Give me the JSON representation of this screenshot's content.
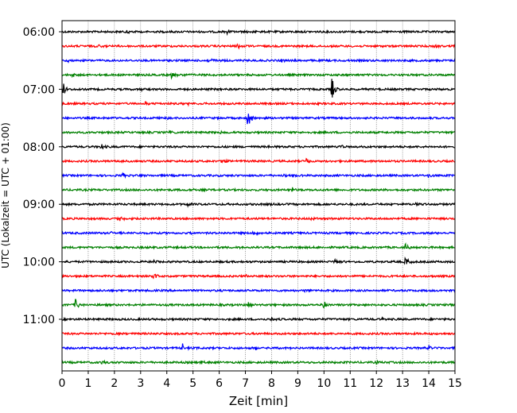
{
  "chart_data": {
    "type": "line",
    "title": "",
    "xlabel": "Zeit  [min]",
    "ylabel": "UTC (Lokalzeit = UTC + 01:00)",
    "xlim": [
      0,
      15
    ],
    "xticks": [
      0,
      1,
      2,
      3,
      4,
      5,
      6,
      7,
      8,
      9,
      10,
      11,
      12,
      13,
      14,
      15
    ],
    "grid": "vertical dotted",
    "trace_interval_min": 15,
    "first_trace_utc": "06:00",
    "ytick_labels": [
      "06:00",
      "07:00",
      "08:00",
      "09:00",
      "10:00",
      "11:00"
    ],
    "ytick_trace_index": [
      0,
      4,
      8,
      12,
      16,
      20
    ],
    "trace_colors": [
      "#000000",
      "#ff0000",
      "#0000ff",
      "#008000"
    ],
    "series": [
      {
        "start_utc": "06:00",
        "color": "#000000",
        "events": [
          {
            "x": 2.5,
            "amp": 0.25
          },
          {
            "x": 6.3,
            "amp": 0.2
          },
          {
            "x": 7.0,
            "amp": 0.15
          }
        ]
      },
      {
        "start_utc": "06:15",
        "color": "#ff0000",
        "events": [
          {
            "x": 1.4,
            "amp": 0.2
          },
          {
            "x": 6.7,
            "amp": 0.25
          },
          {
            "x": 14.2,
            "amp": 0.2
          }
        ]
      },
      {
        "start_utc": "06:30",
        "color": "#0000ff",
        "events": [
          {
            "x": 0.2,
            "amp": 0.15
          },
          {
            "x": 5.6,
            "amp": 0.4
          },
          {
            "x": 8.4,
            "amp": 0.15
          }
        ]
      },
      {
        "start_utc": "06:45",
        "color": "#008000",
        "events": [
          {
            "x": 0.4,
            "amp": 0.2
          },
          {
            "x": 4.2,
            "amp": 0.55
          },
          {
            "x": 4.6,
            "amp": 0.15
          }
        ]
      },
      {
        "start_utc": "07:00",
        "color": "#000000",
        "events": [
          {
            "x": 0.05,
            "amp": 0.5
          },
          {
            "x": 10.3,
            "amp": 1.0
          },
          {
            "x": 3.0,
            "amp": 0.12
          }
        ]
      },
      {
        "start_utc": "07:15",
        "color": "#ff0000",
        "events": [
          {
            "x": 3.2,
            "amp": 0.2
          },
          {
            "x": 4.8,
            "amp": 0.15
          }
        ]
      },
      {
        "start_utc": "07:30",
        "color": "#0000ff",
        "events": [
          {
            "x": 7.1,
            "amp": 1.0
          },
          {
            "x": 4.0,
            "amp": 0.15
          }
        ]
      },
      {
        "start_utc": "07:45",
        "color": "#008000",
        "events": [
          {
            "x": 4.1,
            "amp": 0.2
          },
          {
            "x": 6.0,
            "amp": 0.12
          }
        ]
      },
      {
        "start_utc": "08:00",
        "color": "#000000",
        "events": [
          {
            "x": 1.5,
            "amp": 0.3
          },
          {
            "x": 10.6,
            "amp": 0.25
          },
          {
            "x": 7.9,
            "amp": 0.15
          }
        ]
      },
      {
        "start_utc": "08:15",
        "color": "#ff0000",
        "events": [
          {
            "x": 9.3,
            "amp": 0.35
          },
          {
            "x": 6.1,
            "amp": 0.2
          },
          {
            "x": 2.2,
            "amp": 0.15
          }
        ]
      },
      {
        "start_utc": "08:30",
        "color": "#0000ff",
        "events": [
          {
            "x": 2.3,
            "amp": 0.25
          },
          {
            "x": 14.0,
            "amp": 0.25
          },
          {
            "x": 8.5,
            "amp": 0.15
          }
        ]
      },
      {
        "start_utc": "08:45",
        "color": "#008000",
        "events": [
          {
            "x": 8.8,
            "amp": 0.3
          },
          {
            "x": 5.0,
            "amp": 0.12
          }
        ]
      },
      {
        "start_utc": "09:00",
        "color": "#000000",
        "events": [
          {
            "x": 4.8,
            "amp": 0.25
          },
          {
            "x": 8.0,
            "amp": 0.2
          },
          {
            "x": 13.5,
            "amp": 0.15
          }
        ]
      },
      {
        "start_utc": "09:15",
        "color": "#ff0000",
        "events": [
          {
            "x": 2.2,
            "amp": 0.3
          },
          {
            "x": 9.5,
            "amp": 0.12
          }
        ]
      },
      {
        "start_utc": "09:30",
        "color": "#0000ff",
        "events": [
          {
            "x": 1.9,
            "amp": 0.2
          },
          {
            "x": 7.3,
            "amp": 0.3
          },
          {
            "x": 4.9,
            "amp": 0.15
          }
        ]
      },
      {
        "start_utc": "09:45",
        "color": "#008000",
        "events": [
          {
            "x": 13.1,
            "amp": 0.35
          },
          {
            "x": 6.8,
            "amp": 0.15
          }
        ]
      },
      {
        "start_utc": "10:00",
        "color": "#000000",
        "events": [
          {
            "x": 13.1,
            "amp": 0.5
          },
          {
            "x": 10.4,
            "amp": 0.25
          },
          {
            "x": 3.5,
            "amp": 0.15
          }
        ]
      },
      {
        "start_utc": "10:15",
        "color": "#ff0000",
        "events": [
          {
            "x": 3.5,
            "amp": 0.4
          },
          {
            "x": 7.0,
            "amp": 0.2
          }
        ]
      },
      {
        "start_utc": "10:30",
        "color": "#0000ff",
        "events": [
          {
            "x": 1.5,
            "amp": 0.15
          },
          {
            "x": 9.2,
            "amp": 0.2
          }
        ]
      },
      {
        "start_utc": "10:45",
        "color": "#008000",
        "events": [
          {
            "x": 0.5,
            "amp": 0.6
          },
          {
            "x": 10.0,
            "amp": 0.5
          },
          {
            "x": 7.1,
            "amp": 0.3
          }
        ]
      },
      {
        "start_utc": "11:00",
        "color": "#000000",
        "events": [
          {
            "x": 8.0,
            "amp": 0.15
          },
          {
            "x": 12.2,
            "amp": 0.15
          }
        ]
      },
      {
        "start_utc": "11:15",
        "color": "#ff0000",
        "events": [
          {
            "x": 2.0,
            "amp": 0.12
          },
          {
            "x": 10.5,
            "amp": 0.12
          }
        ]
      },
      {
        "start_utc": "11:30",
        "color": "#0000ff",
        "events": [
          {
            "x": 4.6,
            "amp": 0.35
          },
          {
            "x": 7.4,
            "amp": 0.2
          },
          {
            "x": 8.6,
            "amp": 0.15
          },
          {
            "x": 14.0,
            "amp": 0.2
          }
        ]
      },
      {
        "start_utc": "11:45",
        "color": "#008000",
        "events": [
          {
            "x": 5.3,
            "amp": 0.25
          },
          {
            "x": 1.5,
            "amp": 0.15
          },
          {
            "x": 12.0,
            "amp": 0.15
          }
        ]
      }
    ]
  }
}
